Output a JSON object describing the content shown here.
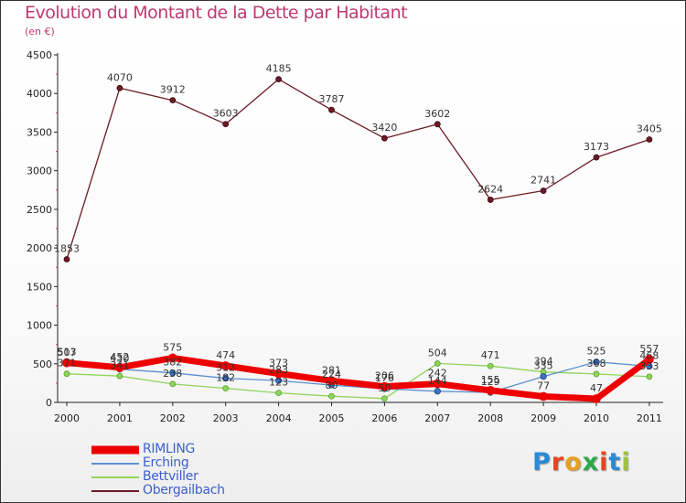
{
  "title": "Evolution du Montant de la Dette par Habitant",
  "subtitle": "(en €)",
  "brand": {
    "letters": [
      "P",
      "r",
      "o",
      "x",
      "i",
      "t",
      "i"
    ],
    "colors": [
      "#2a8ad6",
      "#e8451f",
      "#e8a01f",
      "#2ba84a",
      "#e8451f",
      "#2a8ad6",
      "#9fc43a"
    ]
  },
  "chart_data": {
    "type": "line",
    "x": [
      "2000",
      "2001",
      "2002",
      "2003",
      "2004",
      "2005",
      "2006",
      "2007",
      "2008",
      "2009",
      "2010",
      "2011"
    ],
    "yticks": [
      "0",
      "500",
      "1000",
      "1500",
      "2000",
      "2500",
      "3000",
      "3500",
      "4000",
      "4500"
    ],
    "ylim": [
      0,
      4500
    ],
    "grid": false,
    "legend_position": "bottom-left",
    "series": [
      {
        "name": "Obergailbach",
        "color": "#6b1a24",
        "values": [
          1853,
          4070,
          3912,
          3603,
          4185,
          3787,
          3420,
          3602,
          2624,
          2741,
          3173,
          3405
        ],
        "labels": [
          "1853",
          "4070",
          "3912",
          "3603",
          "4185",
          "3787",
          "3420",
          "3602",
          "2624",
          "2741",
          "3173",
          "3405"
        ]
      },
      {
        "name": "Bettviller",
        "color": "#8fd45a",
        "values": [
          371,
          341,
          238,
          182,
          123,
          80,
          50,
          504,
          471,
          394,
          368,
          333
        ],
        "labels": [
          "371",
          "341",
          "238",
          "182",
          "123",
          "80",
          "50",
          "504",
          "471",
          "394",
          "368",
          "333"
        ]
      },
      {
        "name": "Erching",
        "color": "#5b8fcf",
        "values": [
          507,
          430,
          382,
          312,
          283,
          224,
          176,
          144,
          129,
          335,
          525,
          468
        ],
        "labels": [
          "507",
          "430",
          "382",
          "312",
          "283",
          "224",
          "176",
          "144",
          "129",
          "335",
          "525",
          "468"
        ]
      },
      {
        "name": "RIMLING",
        "color": "#ee0000",
        "values": [
          513,
          452,
          575,
          474,
          373,
          281,
          206,
          242,
          155,
          77,
          47,
          557
        ],
        "labels": [
          "513",
          "452",
          "575",
          "474",
          "373",
          "281",
          "206",
          "242",
          "155",
          "77",
          "47",
          "557"
        ]
      }
    ],
    "legend": [
      "RIMLING",
      "Erching",
      "Bettviller",
      "Obergailbach"
    ]
  }
}
